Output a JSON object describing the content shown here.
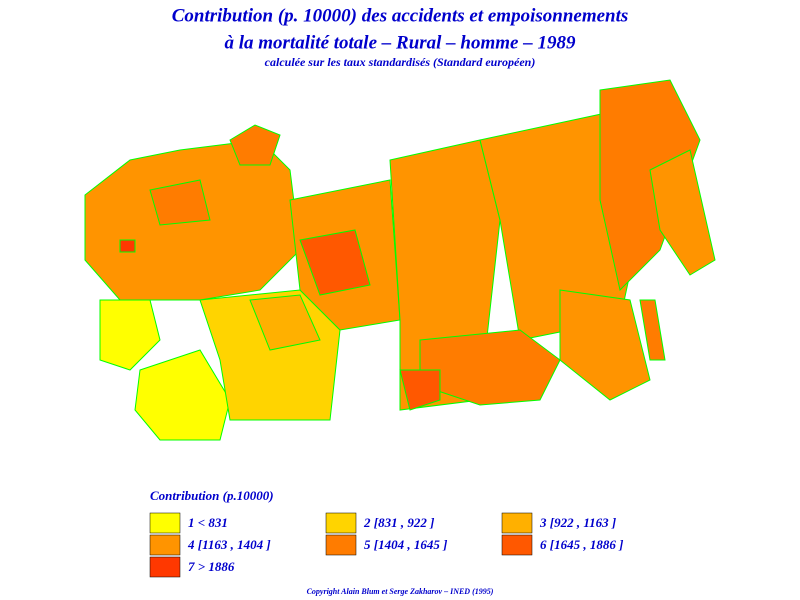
{
  "header": {
    "title_lines": [
      "Contribution (p. 10000) des accidents et empoisonnements",
      "à la mortalité totale – Rural – homme – 1989"
    ],
    "subtitle": "calculée sur les taux standardisés (Standard européen)"
  },
  "legend": {
    "title": "Contribution (p.10000)",
    "items": [
      {
        "label": "1  <  831",
        "color": "#ffff00"
      },
      {
        "label": "2 [831 , 922 ]",
        "color": "#ffd400"
      },
      {
        "label": "3 [922 , 1163 ]",
        "color": "#ffb000"
      },
      {
        "label": "4 [1163 , 1404 ]",
        "color": "#ff9400"
      },
      {
        "label": "5 [1404 , 1645 ]",
        "color": "#ff7c00"
      },
      {
        "label": "6 [1645 , 1886 ]",
        "color": "#ff5800"
      },
      {
        "label": "7  >  1886",
        "color": "#ff3800"
      }
    ]
  },
  "footer": {
    "copyright": "Copyright Alain Blum et Serge Zakharov – INED (1995)"
  }
}
